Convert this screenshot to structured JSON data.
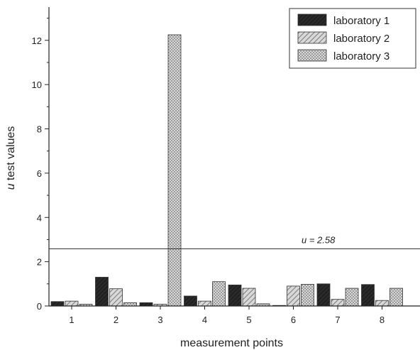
{
  "chart_data": {
    "type": "bar",
    "categories": [
      "1",
      "2",
      "3",
      "4",
      "5",
      "6",
      "7",
      "8"
    ],
    "series": [
      {
        "name": "laboratory 1",
        "values": [
          0.2,
          1.3,
          0.15,
          0.45,
          0.95,
          0.02,
          1.0,
          0.97
        ],
        "pattern": "dark"
      },
      {
        "name": "laboratory 2",
        "values": [
          0.22,
          0.78,
          0.08,
          0.22,
          0.8,
          0.9,
          0.3,
          0.25
        ],
        "pattern": "diagonal"
      },
      {
        "name": "laboratory 3",
        "values": [
          0.08,
          0.15,
          12.25,
          1.1,
          0.1,
          0.98,
          0.8,
          0.8
        ],
        "pattern": "crosshatch"
      }
    ],
    "xlabel": "measurement points",
    "ylabel": "u test values",
    "ylabel_italic_prefix": "u",
    "ylabel_rest": " test values",
    "ylim": [
      0,
      13.5
    ],
    "yticks": [
      "0",
      "2",
      "4",
      "6",
      "8",
      "10",
      "12"
    ],
    "reference_line": {
      "value": 2.58,
      "label_italic": "u",
      "label_rest": " = 2.58"
    },
    "legend_position": "top-right",
    "grid": false
  }
}
